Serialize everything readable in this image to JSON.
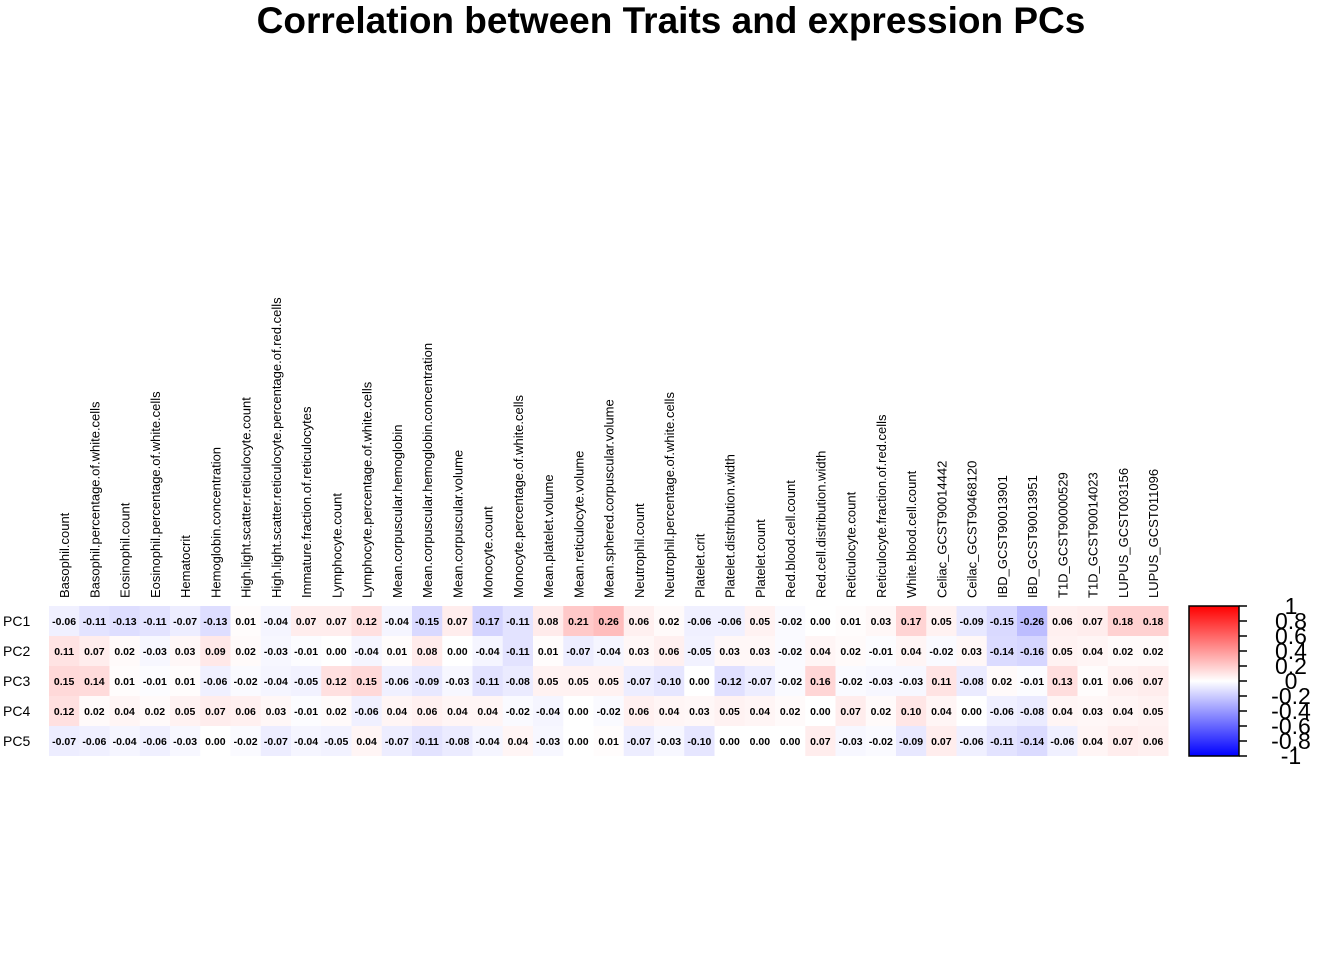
{
  "chart_data": {
    "type": "heatmap",
    "title": "Correlation between Traits and expression PCs",
    "rows": [
      "PC1",
      "PC2",
      "PC3",
      "PC4",
      "PC5"
    ],
    "columns": [
      "Basophil.count",
      "Basophil.percentage.of.white.cells",
      "Eosinophil.count",
      "Eosinophil.percentage.of.white.cells",
      "Hematocrit",
      "Hemoglobin.concentration",
      "High.light.scatter.reticulocyte.count",
      "High.light.scatter.reticulocyte.percentage.of.red.cells",
      "Immature.fraction.of.reticulocytes",
      "Lymphocyte.count",
      "Lymphocyte.percentage.of.white.cells",
      "Mean.corpuscular.hemoglobin",
      "Mean.corpuscular.hemoglobin.concentration",
      "Mean.corpuscular.volume",
      "Monocyte.count",
      "Monocyte.percentage.of.white.cells",
      "Mean.platelet.volume",
      "Mean.reticulocyte.volume",
      "Mean.sphered.corpuscular.volume",
      "Neutrophil.count",
      "Neutrophil.percentage.of.white.cells",
      "Platelet.crit",
      "Platelet.distribution.width",
      "Platelet.count",
      "Red.blood.cell.count",
      "Red.cell.distribution.width",
      "Reticulocyte.count",
      "Reticulocyte.fraction.of.red.cells",
      "White.blood.cell.count",
      "Celiac_GCST90014442",
      "Ceilac_GCST90468120",
      "IBD_GCST90013901",
      "IBD_GCST90013951",
      "T1D_GCST90000529",
      "T1D_GCST90014023",
      "LUPUS_GCST003156",
      "LUPUS_GCST011096"
    ],
    "values": [
      [
        -0.06,
        -0.11,
        -0.13,
        -0.11,
        -0.07,
        -0.13,
        0.01,
        -0.04,
        0.07,
        0.07,
        0.12,
        -0.04,
        -0.15,
        0.07,
        -0.17,
        -0.11,
        0.08,
        0.21,
        0.26,
        0.06,
        0.02,
        -0.06,
        -0.06,
        0.05,
        -0.02,
        0.0,
        0.01,
        0.03,
        0.17,
        0.05,
        -0.09,
        -0.15,
        -0.26,
        0.06,
        0.07,
        0.18,
        0.18
      ],
      [
        0.11,
        0.07,
        0.02,
        -0.03,
        0.03,
        0.09,
        0.02,
        -0.03,
        -0.01,
        0.0,
        -0.04,
        0.01,
        0.08,
        0.0,
        -0.04,
        -0.11,
        0.01,
        -0.07,
        -0.04,
        0.03,
        0.06,
        -0.05,
        0.03,
        0.03,
        -0.02,
        0.04,
        0.02,
        -0.01,
        0.04,
        -0.02,
        0.03,
        -0.14,
        -0.16,
        0.05,
        0.04,
        0.02,
        0.02
      ],
      [
        0.15,
        0.14,
        0.01,
        -0.01,
        0.01,
        -0.06,
        -0.02,
        -0.04,
        -0.05,
        0.12,
        0.15,
        -0.06,
        -0.09,
        -0.03,
        -0.11,
        -0.08,
        0.05,
        0.05,
        0.05,
        -0.07,
        -0.1,
        0.0,
        -0.12,
        -0.07,
        -0.02,
        0.16,
        -0.02,
        -0.03,
        -0.03,
        0.11,
        -0.08,
        0.02,
        -0.01,
        0.13,
        0.01,
        0.06,
        0.07
      ],
      [
        0.12,
        0.02,
        0.04,
        0.02,
        0.05,
        0.07,
        0.06,
        0.03,
        -0.01,
        0.02,
        -0.06,
        0.04,
        0.06,
        0.04,
        0.04,
        -0.02,
        -0.04,
        0.0,
        -0.02,
        0.06,
        0.04,
        0.03,
        0.05,
        0.04,
        0.02,
        0.0,
        0.07,
        0.02,
        0.1,
        0.04,
        0.0,
        -0.06,
        -0.08,
        0.04,
        0.03,
        0.04,
        0.05
      ],
      [
        -0.07,
        -0.06,
        -0.04,
        -0.06,
        -0.03,
        0.0,
        -0.02,
        -0.07,
        -0.04,
        -0.05,
        0.04,
        -0.07,
        -0.11,
        -0.08,
        -0.04,
        0.04,
        -0.03,
        0.0,
        0.01,
        -0.07,
        -0.03,
        -0.1,
        0.0,
        0.0,
        0.0,
        0.07,
        -0.03,
        -0.02,
        -0.09,
        0.07,
        -0.06,
        -0.11,
        -0.14,
        -0.06,
        0.04,
        0.07,
        0.06
      ]
    ],
    "color_scale": {
      "low": "#0000ff",
      "mid": "#ffffff",
      "high": "#ff0000",
      "range": [
        -1,
        1
      ]
    },
    "legend": {
      "placement": "right",
      "ticks": [
        "1",
        "0.8",
        "0.6",
        "0.4",
        "0.2",
        "0",
        "-0.2",
        "-0.4",
        "-0.6",
        "-0.8",
        "-1"
      ]
    }
  }
}
